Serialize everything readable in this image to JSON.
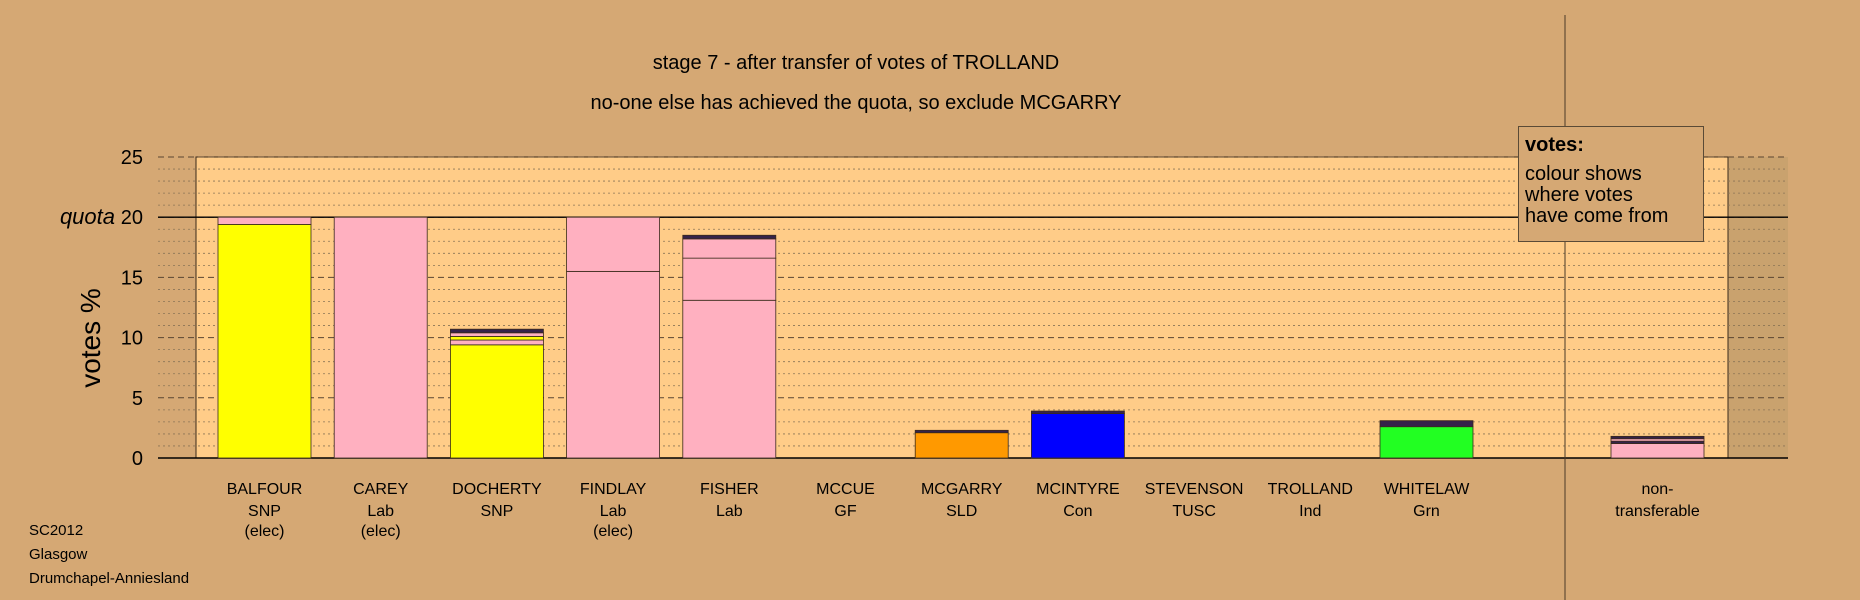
{
  "header": {
    "title": "stage 7 - after transfer of votes of TROLLAND",
    "subtitle": "no-one else has achieved the quota, so exclude MCGARRY"
  },
  "legend": {
    "title": "votes:",
    "body": "colour shows\nwhere votes\nhave come from"
  },
  "footer": {
    "lines": [
      "SC2012",
      "Glasgow",
      "Drumchapel-Anniesland"
    ]
  },
  "chart_data": {
    "type": "bar",
    "title": "stage 7 - after transfer of votes of TROLLAND",
    "subtitle": "no-one else has achieved the quota, so exclude MCGARRY",
    "ylabel": "votes %",
    "ylim": [
      0,
      25
    ],
    "yticks": [
      0,
      5,
      10,
      15,
      20,
      25
    ],
    "quota": 20,
    "quota_label": "quota",
    "grid": true,
    "legend_placement": "top-right",
    "colors": {
      "SNP": "#ffff00",
      "Lab": "#ffb0c0",
      "SLD": "#ff9900",
      "Con": "#0000ff",
      "Grn": "#22ff22",
      "Other": "#35224a",
      "background": "#d5a874",
      "plot": "#ffcc88"
    },
    "candidates": [
      {
        "name": "BALFOUR",
        "party": "SNP",
        "note": "(elec)",
        "segments": [
          {
            "from": "SNP",
            "value": 19.4
          },
          {
            "from": "Lab",
            "value": 0.6
          }
        ]
      },
      {
        "name": "CAREY",
        "party": "Lab",
        "note": "(elec)",
        "segments": [
          {
            "from": "Lab",
            "value": 20.0
          }
        ]
      },
      {
        "name": "DOCHERTY",
        "party": "SNP",
        "note": "",
        "segments": [
          {
            "from": "SNP",
            "value": 9.4
          },
          {
            "from": "Lab",
            "value": 0.4
          },
          {
            "from": "SNP",
            "value": 0.3
          },
          {
            "from": "Lab",
            "value": 0.3
          },
          {
            "from": "Other",
            "value": 0.3
          }
        ]
      },
      {
        "name": "FINDLAY",
        "party": "Lab",
        "note": "(elec)",
        "segments": [
          {
            "from": "Lab",
            "value": 15.5
          },
          {
            "from": "Lab",
            "value": 4.5
          }
        ]
      },
      {
        "name": "FISHER",
        "party": "Lab",
        "note": "",
        "segments": [
          {
            "from": "Lab",
            "value": 13.1
          },
          {
            "from": "Lab",
            "value": 3.5
          },
          {
            "from": "Lab",
            "value": 1.6
          },
          {
            "from": "Other",
            "value": 0.3
          }
        ]
      },
      {
        "name": "MCCUE",
        "party": "GF",
        "note": "",
        "segments": []
      },
      {
        "name": "MCGARRY",
        "party": "SLD",
        "note": "",
        "segments": [
          {
            "from": "SLD",
            "value": 2.1
          },
          {
            "from": "Other",
            "value": 0.2
          }
        ]
      },
      {
        "name": "MCINTYRE",
        "party": "Con",
        "note": "",
        "segments": [
          {
            "from": "Con",
            "value": 3.7
          },
          {
            "from": "Other",
            "value": 0.2
          }
        ]
      },
      {
        "name": "STEVENSON",
        "party": "TUSC",
        "note": "",
        "segments": []
      },
      {
        "name": "TROLLAND",
        "party": "Ind",
        "note": "",
        "segments": []
      },
      {
        "name": "WHITELAW",
        "party": "Grn",
        "note": "",
        "segments": [
          {
            "from": "Grn",
            "value": 2.6
          },
          {
            "from": "Other",
            "value": 0.5
          }
        ]
      }
    ],
    "non_transferable": {
      "label_lines": [
        "non-",
        "transferable"
      ],
      "segments": [
        {
          "from": "Lab",
          "value": 1.2
        },
        {
          "from": "Other",
          "value": 0.2
        },
        {
          "from": "Lab",
          "value": 0.2
        },
        {
          "from": "Other",
          "value": 0.2
        }
      ]
    }
  }
}
